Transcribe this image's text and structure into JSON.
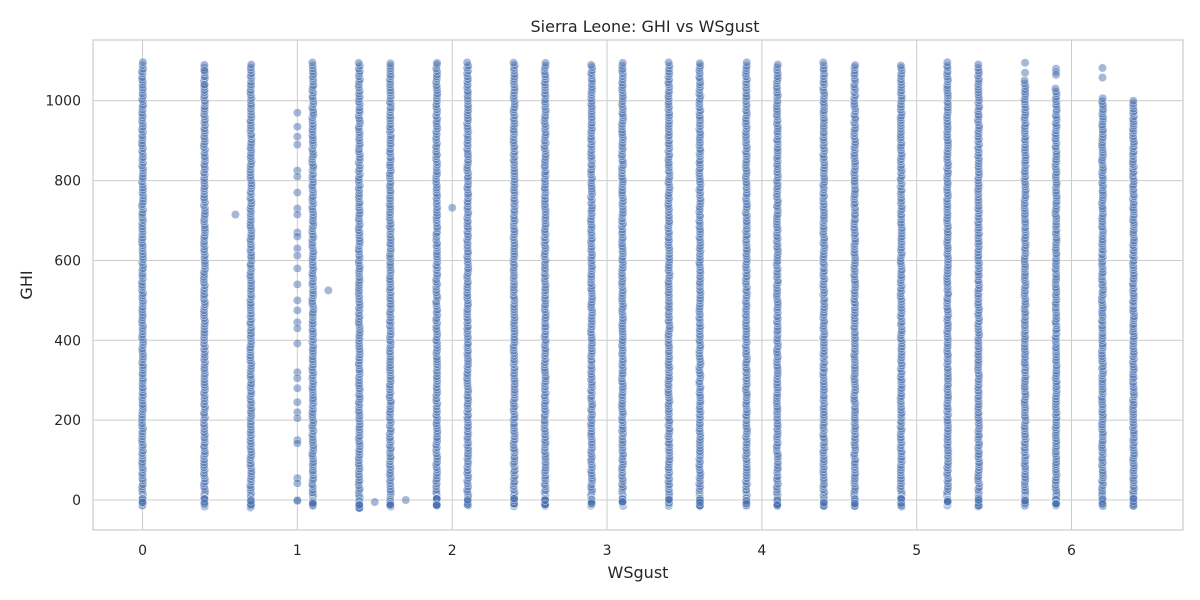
{
  "chart_data": {
    "type": "scatter",
    "title": "Sierra Leone: GHI vs WSgust",
    "xlabel": "WSgust",
    "ylabel": "GHI",
    "xlim": [
      -0.32,
      6.72
    ],
    "ylim": [
      -75,
      1152
    ],
    "xticks": [
      0,
      1,
      2,
      3,
      4,
      5,
      6
    ],
    "yticks": [
      0,
      200,
      400,
      600,
      800,
      1000
    ],
    "grid": true,
    "point_color": "#4c72b0",
    "point_alpha": 0.5,
    "columns": [
      {
        "x": 0.0,
        "ymin": -15,
        "ymax": 1095
      },
      {
        "x": 0.4,
        "ymin": -15,
        "ymax": 1090
      },
      {
        "x": 0.7,
        "ymin": -18,
        "ymax": 1090
      },
      {
        "x": 1.1,
        "ymin": -15,
        "ymax": 1095
      },
      {
        "x": 1.4,
        "ymin": -20,
        "ymax": 1095
      },
      {
        "x": 1.6,
        "ymin": -15,
        "ymax": 1095
      },
      {
        "x": 1.9,
        "ymin": -15,
        "ymax": 1095
      },
      {
        "x": 2.1,
        "ymin": -15,
        "ymax": 1095
      },
      {
        "x": 2.4,
        "ymin": -15,
        "ymax": 1095
      },
      {
        "x": 2.6,
        "ymin": -15,
        "ymax": 1095
      },
      {
        "x": 2.9,
        "ymin": -15,
        "ymax": 1090
      },
      {
        "x": 3.1,
        "ymin": -15,
        "ymax": 1095
      },
      {
        "x": 3.4,
        "ymin": -15,
        "ymax": 1095
      },
      {
        "x": 3.6,
        "ymin": -15,
        "ymax": 1095
      },
      {
        "x": 3.9,
        "ymin": -15,
        "ymax": 1095
      },
      {
        "x": 4.1,
        "ymin": -15,
        "ymax": 1090
      },
      {
        "x": 4.4,
        "ymin": -15,
        "ymax": 1095
      },
      {
        "x": 4.6,
        "ymin": -15,
        "ymax": 1090
      },
      {
        "x": 4.9,
        "ymin": -15,
        "ymax": 1088
      },
      {
        "x": 5.2,
        "ymin": -15,
        "ymax": 1095
      },
      {
        "x": 5.4,
        "ymin": -15,
        "ymax": 1090
      },
      {
        "x": 5.7,
        "ymin": -15,
        "ymax": 1050
      },
      {
        "x": 5.9,
        "ymin": -15,
        "ymax": 1030
      },
      {
        "x": 6.2,
        "ymin": -15,
        "ymax": 1005
      },
      {
        "x": 6.4,
        "ymin": -15,
        "ymax": 1000
      }
    ],
    "scatter_points": [
      {
        "x": 1.0,
        "y": 970
      },
      {
        "x": 1.0,
        "y": 935
      },
      {
        "x": 1.0,
        "y": 910
      },
      {
        "x": 1.0,
        "y": 890
      },
      {
        "x": 1.0,
        "y": 825
      },
      {
        "x": 1.0,
        "y": 810
      },
      {
        "x": 1.0,
        "y": 770
      },
      {
        "x": 1.0,
        "y": 730
      },
      {
        "x": 1.0,
        "y": 715
      },
      {
        "x": 1.0,
        "y": 670
      },
      {
        "x": 1.0,
        "y": 660
      },
      {
        "x": 1.0,
        "y": 630
      },
      {
        "x": 1.0,
        "y": 612
      },
      {
        "x": 1.0,
        "y": 580
      },
      {
        "x": 1.0,
        "y": 540
      },
      {
        "x": 1.0,
        "y": 500
      },
      {
        "x": 1.0,
        "y": 475
      },
      {
        "x": 1.0,
        "y": 445
      },
      {
        "x": 1.0,
        "y": 430
      },
      {
        "x": 1.0,
        "y": 392
      },
      {
        "x": 1.0,
        "y": 320
      },
      {
        "x": 1.0,
        "y": 305
      },
      {
        "x": 1.0,
        "y": 280
      },
      {
        "x": 1.0,
        "y": 245
      },
      {
        "x": 1.0,
        "y": 220
      },
      {
        "x": 1.0,
        "y": 205
      },
      {
        "x": 1.0,
        "y": 150
      },
      {
        "x": 1.0,
        "y": 142
      },
      {
        "x": 1.0,
        "y": 55
      },
      {
        "x": 1.0,
        "y": 42
      },
      {
        "x": 1.0,
        "y": 0
      },
      {
        "x": 1.0,
        "y": -2
      },
      {
        "x": 0.6,
        "y": 715
      },
      {
        "x": 1.2,
        "y": 525
      },
      {
        "x": 2.0,
        "y": 732
      },
      {
        "x": 1.5,
        "y": -5
      },
      {
        "x": 1.7,
        "y": 0
      },
      {
        "x": 5.7,
        "y": 1095
      },
      {
        "x": 5.7,
        "y": 1070
      },
      {
        "x": 5.9,
        "y": 1080
      },
      {
        "x": 5.9,
        "y": 1072
      },
      {
        "x": 5.9,
        "y": 1065
      },
      {
        "x": 6.2,
        "y": 1082
      },
      {
        "x": 6.2,
        "y": 1058
      },
      {
        "x": 0.4,
        "y": 1075
      },
      {
        "x": 0.4,
        "y": 1040
      }
    ]
  }
}
